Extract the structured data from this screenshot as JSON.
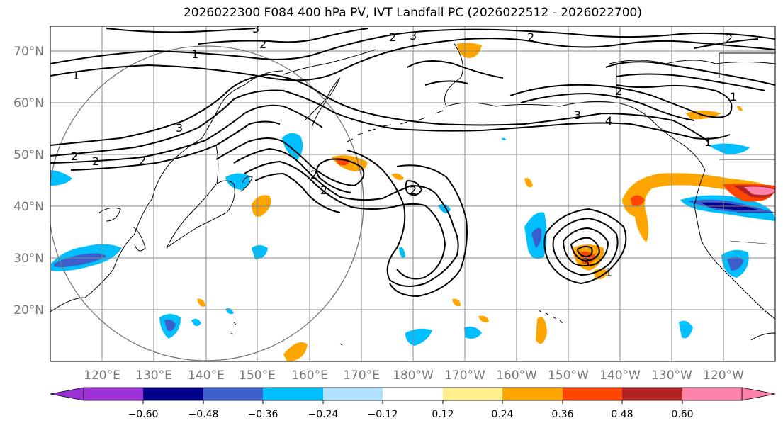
{
  "title": "2026022300 F084 400 hPa PV, IVT Landfall PC (2026022512 - 2026022700)",
  "lat_labels": [
    "70°N",
    "60°N",
    "50°N",
    "40°N",
    "30°N",
    "20°N"
  ],
  "lon_labels": [
    "120°E",
    "130°E",
    "140°E",
    "150°E",
    "160°E",
    "170°E",
    "180°W",
    "170°W",
    "160°W",
    "150°W",
    "140°W",
    "130°W",
    "120°W"
  ],
  "colorbar": {
    "ticks": [
      "−0.60",
      "−0.48",
      "−0.36",
      "−0.24",
      "−0.12",
      "0.12",
      "0.24",
      "0.36",
      "0.48",
      "0.60"
    ],
    "colors": [
      "#9b30d6",
      "#00008b",
      "#3a5fcd",
      "#00bfff",
      "#b0e2ff",
      "#ffffff",
      "#ffec8b",
      "#ffa500",
      "#ff4500",
      "#b22222",
      "#ff82ab"
    ]
  },
  "contour_labels": {
    "l1": "1",
    "l2": "2",
    "l3": "3",
    "l4": "4"
  },
  "colors": {
    "axis_label": "#777777",
    "grid": "#888888"
  }
}
